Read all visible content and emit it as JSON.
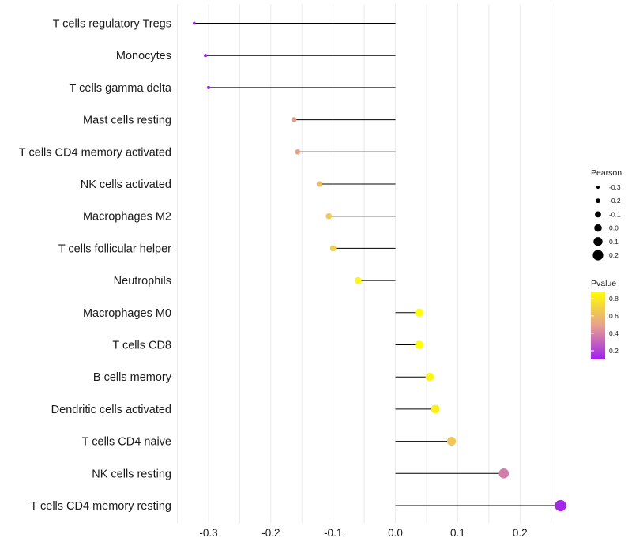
{
  "chart_data": {
    "type": "lollipop",
    "title": "",
    "xlabel": "",
    "ylabel": "",
    "xlim": [
      -0.35,
      0.28
    ],
    "x_ticks": [
      -0.3,
      -0.2,
      -0.1,
      0.0,
      0.1,
      0.2
    ],
    "x_tick_labels": [
      "-0.3",
      "-0.2",
      "-0.1",
      "0.0",
      "0.1",
      "0.2"
    ],
    "grid": true,
    "categories": [
      "T cells regulatory  Tregs",
      "Monocytes",
      "T cells gamma delta",
      "Mast cells resting",
      "T cells CD4 memory activated",
      "NK cells activated",
      "Macrophages M2",
      "T cells follicular helper",
      "Neutrophils",
      "Macrophages M0",
      "T cells CD8",
      "B cells memory",
      "Dendritic cells activated",
      "T cells CD4 naive",
      "NK cells resting",
      "T cells CD4 memory resting"
    ],
    "pearson": [
      -0.323,
      -0.305,
      -0.3,
      -0.163,
      -0.157,
      -0.122,
      -0.107,
      -0.1,
      -0.06,
      0.038,
      0.038,
      0.055,
      0.064,
      0.09,
      0.174,
      0.265
    ],
    "pvalue": [
      0.1,
      0.1,
      0.1,
      0.48,
      0.5,
      0.6,
      0.66,
      0.68,
      0.85,
      0.9,
      0.92,
      0.84,
      0.82,
      0.64,
      0.38,
      0.12
    ],
    "legend_size": {
      "title": "Pearson",
      "values": [
        -0.3,
        -0.2,
        -0.1,
        0.0,
        0.1,
        0.2
      ],
      "labels": [
        "-0.3",
        "-0.2",
        "-0.1",
        "0.0",
        "0.1",
        "0.2"
      ]
    },
    "legend_color": {
      "title": "Pvalue",
      "range": [
        0.1,
        0.88
      ],
      "values": [
        0.8,
        0.6,
        0.4,
        0.2
      ],
      "labels": [
        "0.8",
        "0.6",
        "0.4",
        "0.2"
      ],
      "colors": {
        "low": "#a020f0",
        "mid": "#e8a08e",
        "high": "#ffff00"
      }
    },
    "colors": {
      "stem": "#000000",
      "grid": "#ebebeb"
    }
  }
}
